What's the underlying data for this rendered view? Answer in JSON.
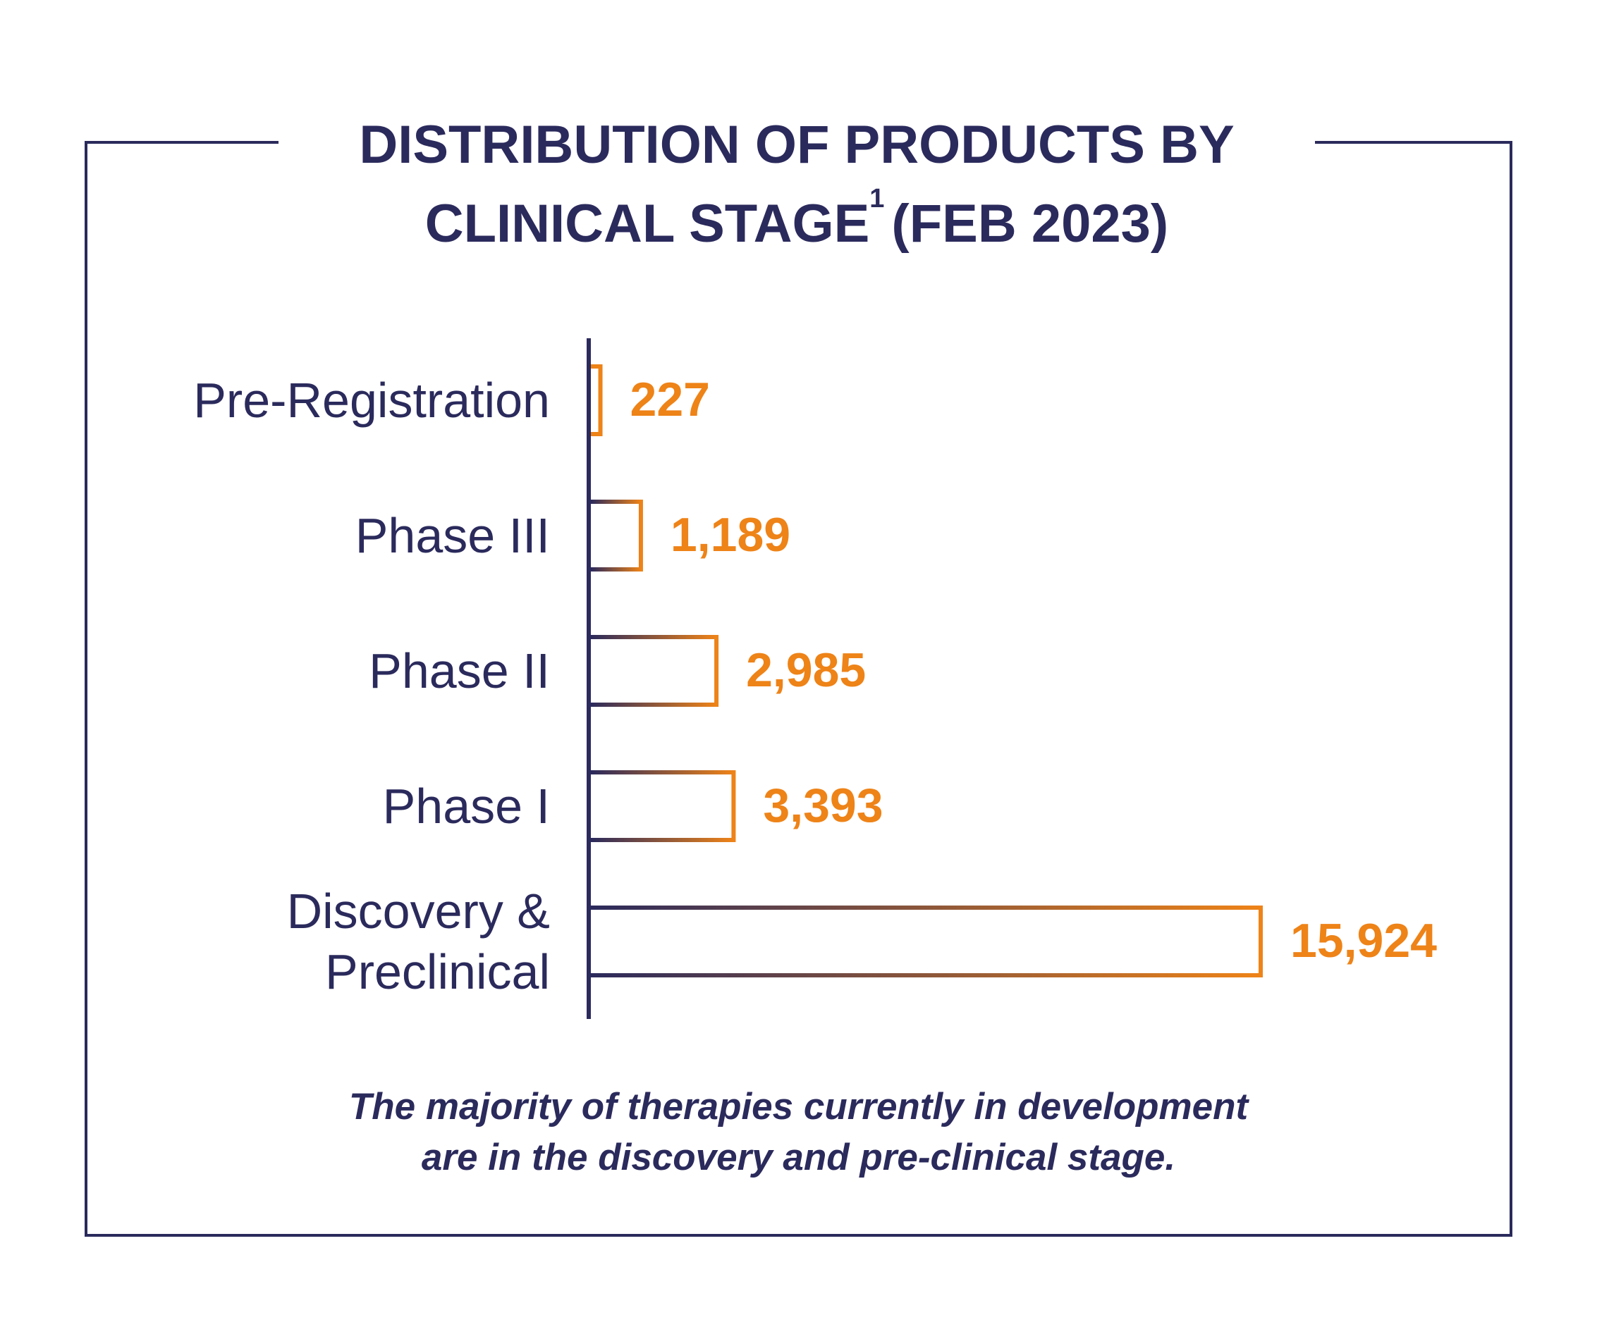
{
  "title": {
    "line1": "DISTRIBUTION OF PRODUCTS BY",
    "line2_main": "CLINICAL STAGE",
    "line2_sup": "1",
    "line2_tail": "(FEB 2023)"
  },
  "caption": {
    "line1": "The majority of therapies currently in development",
    "line2": "are in the discovery and pre-clinical stage."
  },
  "colors": {
    "navy": "#2b2a5c",
    "orange": "#ee8318"
  },
  "chart_data": {
    "type": "bar",
    "orientation": "horizontal",
    "title": "DISTRIBUTION OF PRODUCTS BY CLINICAL STAGE1 (FEB 2023)",
    "categories": [
      "Pre-Registration",
      "Phase III",
      "Phase II",
      "Phase I",
      "Discovery & Preclinical"
    ],
    "category_lines": [
      [
        "Pre-Registration"
      ],
      [
        "Phase III"
      ],
      [
        "Phase II"
      ],
      [
        "Phase I"
      ],
      [
        "Discovery &",
        "Preclinical"
      ]
    ],
    "values": [
      227,
      1189,
      2985,
      3393,
      15924
    ],
    "value_labels": [
      "227",
      "1,189",
      "2,985",
      "3,393",
      "15,924"
    ],
    "xlim": [
      0,
      15924
    ],
    "grid": false,
    "legend": "none"
  }
}
